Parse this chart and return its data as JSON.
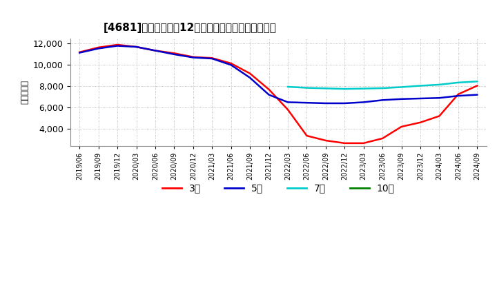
{
  "title": "[4681]　当期純利益12か月移動合計の平均値の推移",
  "ylabel": "（百万円）",
  "ylim": [
    2400,
    12500
  ],
  "yticks": [
    4000,
    6000,
    8000,
    10000,
    12000
  ],
  "background_color": "#ffffff",
  "grid_color": "#aaaaaa",
  "series": {
    "3年": {
      "color": "#ff0000",
      "dates": [
        "2019/06",
        "2019/09",
        "2019/12",
        "2020/03",
        "2020/06",
        "2020/09",
        "2020/12",
        "2021/03",
        "2021/06",
        "2021/09",
        "2021/12",
        "2022/03",
        "2022/06",
        "2022/09",
        "2022/12",
        "2023/03",
        "2023/06",
        "2023/09",
        "2023/12",
        "2024/03",
        "2024/06",
        "2024/09"
      ],
      "values": [
        11200,
        11650,
        11900,
        11700,
        11350,
        11100,
        10750,
        10650,
        10150,
        9200,
        7700,
        5800,
        3350,
        2900,
        2650,
        2650,
        3100,
        4200,
        4600,
        5200,
        7250,
        8050
      ]
    },
    "5年": {
      "color": "#0000cc",
      "dates": [
        "2019/06",
        "2019/09",
        "2019/12",
        "2020/03",
        "2020/06",
        "2020/09",
        "2020/12",
        "2021/03",
        "2021/06",
        "2021/09",
        "2021/12",
        "2022/03",
        "2022/06",
        "2022/09",
        "2022/12",
        "2023/03",
        "2023/06",
        "2023/09",
        "2023/12",
        "2024/03",
        "2024/06",
        "2024/09"
      ],
      "values": [
        11150,
        11550,
        11800,
        11700,
        11350,
        11000,
        10700,
        10600,
        10000,
        8800,
        7200,
        6500,
        6450,
        6400,
        6400,
        6500,
        6700,
        6800,
        6850,
        6900,
        7100,
        7200
      ]
    },
    "7年": {
      "color": "#00cccc",
      "dates": [
        "2022/03",
        "2022/06",
        "2022/09",
        "2022/12",
        "2023/03",
        "2023/06",
        "2023/09",
        "2023/12",
        "2024/03",
        "2024/06",
        "2024/09"
      ],
      "values": [
        7950,
        7850,
        7800,
        7750,
        7780,
        7820,
        7920,
        8050,
        8150,
        8350,
        8450
      ]
    },
    "10年": {
      "color": "#008000",
      "dates": [],
      "values": []
    }
  },
  "legend_labels": [
    "3年",
    "5年",
    "7年",
    "10年"
  ],
  "legend_colors": [
    "#ff0000",
    "#0000cc",
    "#00cccc",
    "#008000"
  ],
  "xtick_labels": [
    "2019/06",
    "2019/09",
    "2019/12",
    "2020/03",
    "2020/06",
    "2020/09",
    "2020/12",
    "2021/03",
    "2021/06",
    "2021/09",
    "2021/12",
    "2022/03",
    "2022/06",
    "2022/09",
    "2022/12",
    "2023/03",
    "2023/06",
    "2023/09",
    "2023/12",
    "2024/03",
    "2024/06",
    "2024/09"
  ]
}
